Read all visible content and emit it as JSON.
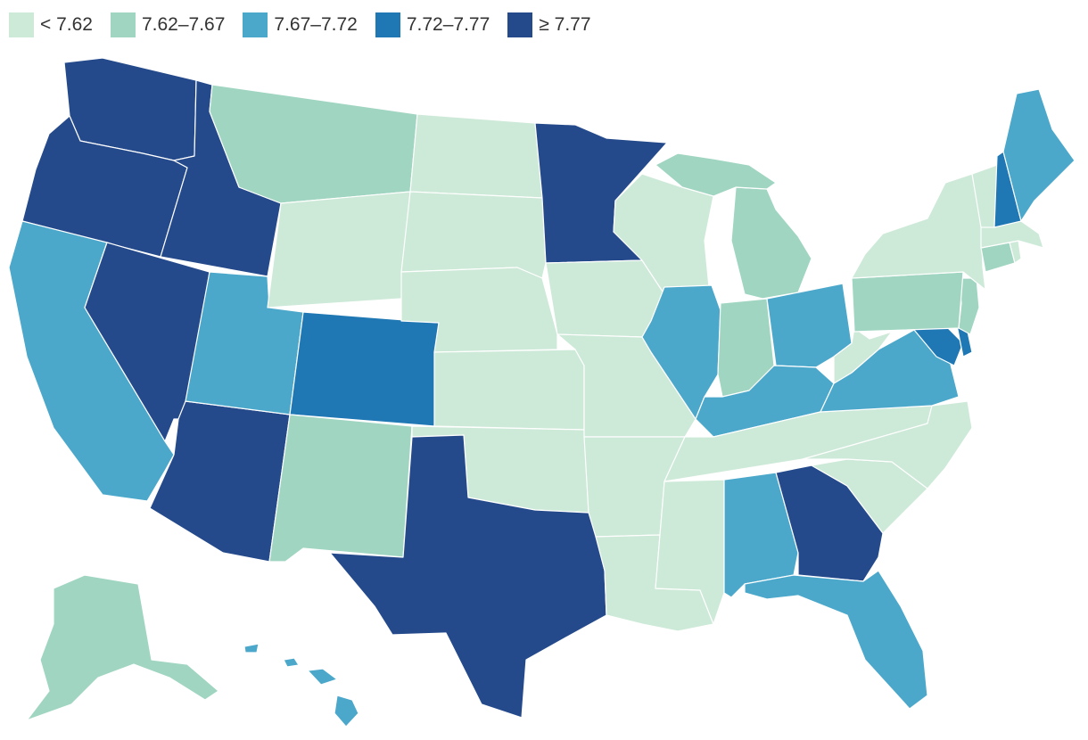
{
  "legend": {
    "items": [
      {
        "label": "< 7.62",
        "color": "#cde9d8"
      },
      {
        "label": "7.62–7.67",
        "color": "#9fd5c1"
      },
      {
        "label": "7.67–7.72",
        "color": "#4ba8cb"
      },
      {
        "label": "7.72–7.77",
        "color": "#1f78b4"
      },
      {
        "label": "≥ 7.77",
        "color": "#254a8b"
      }
    ]
  },
  "states": [
    {
      "id": "WA",
      "bin": 4
    },
    {
      "id": "OR",
      "bin": 4
    },
    {
      "id": "CA",
      "bin": 2
    },
    {
      "id": "ID",
      "bin": 4
    },
    {
      "id": "NV",
      "bin": 4
    },
    {
      "id": "AZ",
      "bin": 4
    },
    {
      "id": "UT",
      "bin": 2
    },
    {
      "id": "MT",
      "bin": 1
    },
    {
      "id": "WY",
      "bin": 0
    },
    {
      "id": "CO",
      "bin": 3
    },
    {
      "id": "NM",
      "bin": 1
    },
    {
      "id": "ND",
      "bin": 0
    },
    {
      "id": "SD",
      "bin": 0
    },
    {
      "id": "NE",
      "bin": 0
    },
    {
      "id": "KS",
      "bin": 0
    },
    {
      "id": "OK",
      "bin": 0
    },
    {
      "id": "TX",
      "bin": 4
    },
    {
      "id": "MN",
      "bin": 4
    },
    {
      "id": "IA",
      "bin": 0
    },
    {
      "id": "MO",
      "bin": 0
    },
    {
      "id": "AR",
      "bin": 0
    },
    {
      "id": "LA",
      "bin": 0
    },
    {
      "id": "WI",
      "bin": 0
    },
    {
      "id": "IL",
      "bin": 2
    },
    {
      "id": "MI",
      "bin": 1
    },
    {
      "id": "MI_UP",
      "bin": 1
    },
    {
      "id": "IN",
      "bin": 1
    },
    {
      "id": "OH",
      "bin": 2
    },
    {
      "id": "KY",
      "bin": 2
    },
    {
      "id": "TN",
      "bin": 0
    },
    {
      "id": "MS",
      "bin": 0
    },
    {
      "id": "AL",
      "bin": 2
    },
    {
      "id": "GA",
      "bin": 4
    },
    {
      "id": "FL",
      "bin": 2
    },
    {
      "id": "SC",
      "bin": 0
    },
    {
      "id": "NC",
      "bin": 0
    },
    {
      "id": "VA",
      "bin": 2
    },
    {
      "id": "WV",
      "bin": 0
    },
    {
      "id": "MD",
      "bin": 3
    },
    {
      "id": "DE",
      "bin": 3
    },
    {
      "id": "NJ",
      "bin": 1
    },
    {
      "id": "PA",
      "bin": 1
    },
    {
      "id": "NY",
      "bin": 0
    },
    {
      "id": "CT",
      "bin": 1
    },
    {
      "id": "RI",
      "bin": 0
    },
    {
      "id": "MA",
      "bin": 0
    },
    {
      "id": "VT",
      "bin": 0
    },
    {
      "id": "NH",
      "bin": 3
    },
    {
      "id": "ME",
      "bin": 2
    },
    {
      "id": "AK",
      "bin": 1
    },
    {
      "id": "HI",
      "bin": 2
    }
  ]
}
